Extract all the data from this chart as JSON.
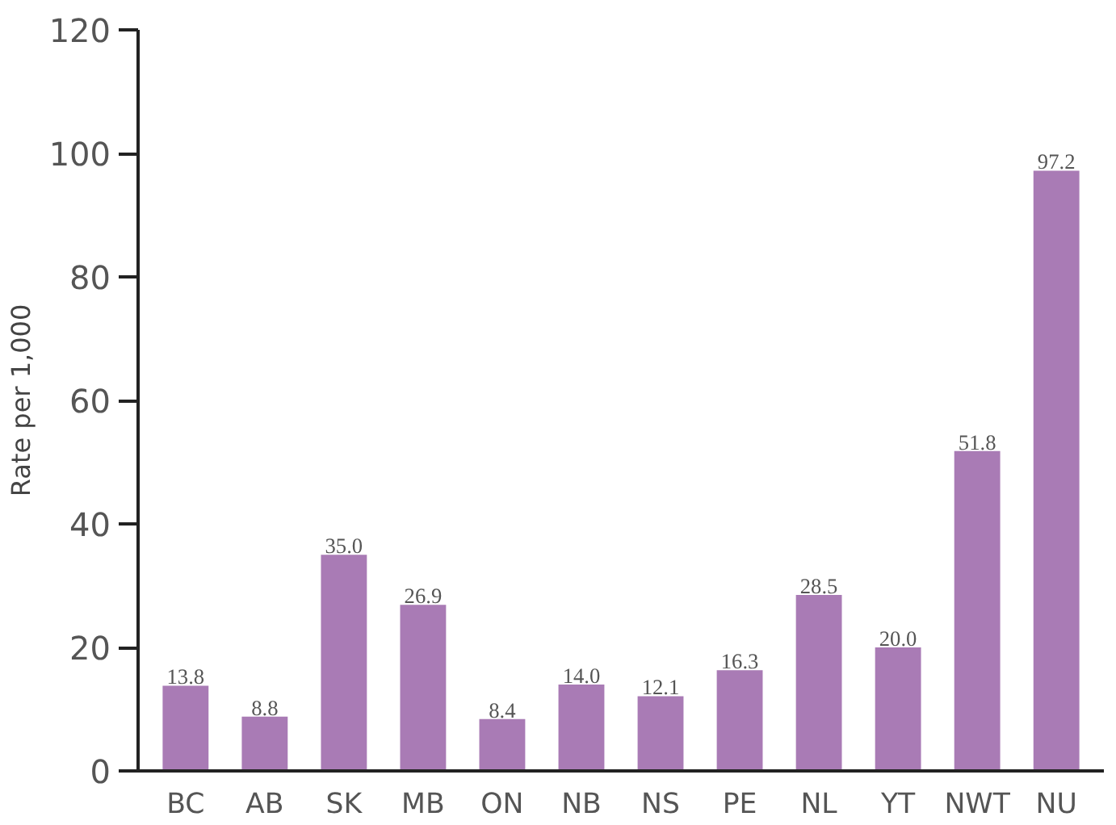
{
  "chart_data": {
    "type": "bar",
    "ylabel": "Rate per 1,000",
    "categories": [
      "BC",
      "AB",
      "SK",
      "MB",
      "ON",
      "NB",
      "NS",
      "PE",
      "NL",
      "YT",
      "NWT",
      "NU"
    ],
    "values": [
      13.8,
      8.8,
      35.0,
      26.9,
      8.4,
      14.0,
      12.1,
      16.3,
      28.5,
      20.0,
      51.8,
      97.2
    ],
    "value_labels": [
      "13.8",
      "8.8",
      "35.0",
      "26.9",
      "8.4",
      "14.0",
      "12.1",
      "16.3",
      "28.5",
      "20.0",
      "51.8",
      "97.2"
    ],
    "color": "#a97bb5",
    "ylim": [
      0,
      120
    ],
    "yticks": [
      0,
      20,
      40,
      60,
      80,
      100,
      120
    ],
    "grid": false
  }
}
